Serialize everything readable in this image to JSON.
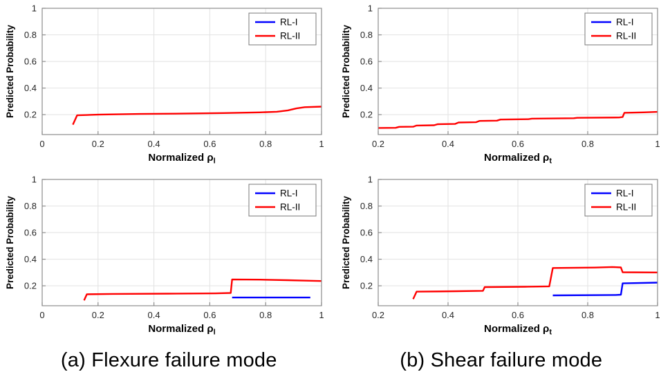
{
  "page": {
    "background": "#ffffff"
  },
  "captions": [
    {
      "id": "a",
      "text": "(a) Flexure failure mode"
    },
    {
      "id": "b",
      "text": "(b) Shear failure mode"
    }
  ],
  "style": {
    "grid_color": "#e2e2e2",
    "box_color": "#8c8c8c",
    "tick_label_color": "#262626",
    "legend_border_color": "#777777",
    "series_blue": "#0000ff",
    "series_red": "#ff0000"
  },
  "chart_data": [
    {
      "id": "flexure-top",
      "type": "line",
      "title": "",
      "xlabel": "Normalized ρ",
      "xlabel_sub": "l",
      "ylabel": "Predicted Probability",
      "xlim": [
        0,
        1
      ],
      "ylim": [
        0.05,
        1
      ],
      "xticks": [
        0,
        0.2,
        0.4,
        0.6,
        0.8,
        1
      ],
      "yticks": [
        0.2,
        0.4,
        0.6,
        0.8,
        1
      ],
      "grid": true,
      "legend_position": "top-right",
      "series": [
        {
          "name": "RL-I",
          "color": "#0000ff",
          "points": []
        },
        {
          "name": "RL-II",
          "color": "#ff0000",
          "points": [
            [
              0.11,
              0.125
            ],
            [
              0.125,
              0.195
            ],
            [
              0.2,
              0.2
            ],
            [
              0.35,
              0.205
            ],
            [
              0.5,
              0.208
            ],
            [
              0.65,
              0.212
            ],
            [
              0.78,
              0.217
            ],
            [
              0.84,
              0.222
            ],
            [
              0.88,
              0.232
            ],
            [
              0.91,
              0.247
            ],
            [
              0.94,
              0.256
            ],
            [
              1,
              0.26
            ]
          ]
        }
      ]
    },
    {
      "id": "shear-top",
      "type": "line",
      "title": "",
      "xlabel": "Normalized ρ",
      "xlabel_sub": "t",
      "ylabel": "Predicted Probability",
      "xlim": [
        0.2,
        1
      ],
      "ylim": [
        0.05,
        1
      ],
      "xticks": [
        0.2,
        0.4,
        0.6,
        0.8,
        1
      ],
      "yticks": [
        0.2,
        0.4,
        0.6,
        0.8,
        1
      ],
      "grid": true,
      "legend_position": "top-right",
      "series": [
        {
          "name": "RL-I",
          "color": "#0000ff",
          "points": []
        },
        {
          "name": "RL-II",
          "color": "#ff0000",
          "points": [
            [
              0.2,
              0.1
            ],
            [
              0.25,
              0.101
            ],
            [
              0.26,
              0.108
            ],
            [
              0.3,
              0.109
            ],
            [
              0.31,
              0.118
            ],
            [
              0.36,
              0.12
            ],
            [
              0.37,
              0.128
            ],
            [
              0.42,
              0.13
            ],
            [
              0.43,
              0.141
            ],
            [
              0.48,
              0.143
            ],
            [
              0.49,
              0.153
            ],
            [
              0.54,
              0.155
            ],
            [
              0.55,
              0.163
            ],
            [
              0.63,
              0.166
            ],
            [
              0.64,
              0.17
            ],
            [
              0.76,
              0.173
            ],
            [
              0.77,
              0.176
            ],
            [
              0.89,
              0.179
            ],
            [
              0.9,
              0.182
            ],
            [
              0.905,
              0.214
            ],
            [
              0.96,
              0.217
            ],
            [
              1,
              0.221
            ]
          ]
        }
      ]
    },
    {
      "id": "flexure-bottom",
      "type": "line",
      "title": "",
      "xlabel": "Normalized ρ",
      "xlabel_sub": "l",
      "ylabel": "Predicted Probability",
      "xlim": [
        0,
        1
      ],
      "ylim": [
        0.05,
        1
      ],
      "xticks": [
        0,
        0.2,
        0.4,
        0.6,
        0.8,
        1
      ],
      "yticks": [
        0.2,
        0.4,
        0.6,
        0.8,
        1
      ],
      "grid": true,
      "legend_position": "top-right",
      "series": [
        {
          "name": "RL-I",
          "color": "#0000ff",
          "points": [
            [
              0.68,
              0.112
            ],
            [
              0.96,
              0.112
            ]
          ]
        },
        {
          "name": "RL-II",
          "color": "#ff0000",
          "points": [
            [
              0.15,
              0.09
            ],
            [
              0.16,
              0.136
            ],
            [
              0.25,
              0.139
            ],
            [
              0.45,
              0.141
            ],
            [
              0.62,
              0.143
            ],
            [
              0.675,
              0.146
            ],
            [
              0.68,
              0.248
            ],
            [
              0.78,
              0.246
            ],
            [
              0.88,
              0.242
            ],
            [
              0.96,
              0.238
            ],
            [
              1,
              0.236
            ]
          ]
        }
      ]
    },
    {
      "id": "shear-bottom",
      "type": "line",
      "title": "",
      "xlabel": "Normalized ρ",
      "xlabel_sub": "t",
      "ylabel": "Predicted Probability",
      "xlim": [
        0.2,
        1
      ],
      "ylim": [
        0.05,
        1
      ],
      "xticks": [
        0.2,
        0.4,
        0.6,
        0.8,
        1
      ],
      "yticks": [
        0.2,
        0.4,
        0.6,
        0.8,
        1
      ],
      "grid": true,
      "legend_position": "top-right",
      "series": [
        {
          "name": "RL-I",
          "color": "#0000ff",
          "points": [
            [
              0.7,
              0.128
            ],
            [
              0.88,
              0.131
            ],
            [
              0.895,
              0.133
            ],
            [
              0.9,
              0.218
            ],
            [
              1,
              0.224
            ]
          ]
        },
        {
          "name": "RL-II",
          "color": "#ff0000",
          "points": [
            [
              0.3,
              0.1
            ],
            [
              0.31,
              0.156
            ],
            [
              0.42,
              0.159
            ],
            [
              0.5,
              0.162
            ],
            [
              0.505,
              0.19
            ],
            [
              0.62,
              0.193
            ],
            [
              0.69,
              0.196
            ],
            [
              0.7,
              0.334
            ],
            [
              0.82,
              0.337
            ],
            [
              0.87,
              0.341
            ],
            [
              0.895,
              0.338
            ],
            [
              0.9,
              0.302
            ],
            [
              1,
              0.3
            ]
          ]
        }
      ]
    }
  ]
}
